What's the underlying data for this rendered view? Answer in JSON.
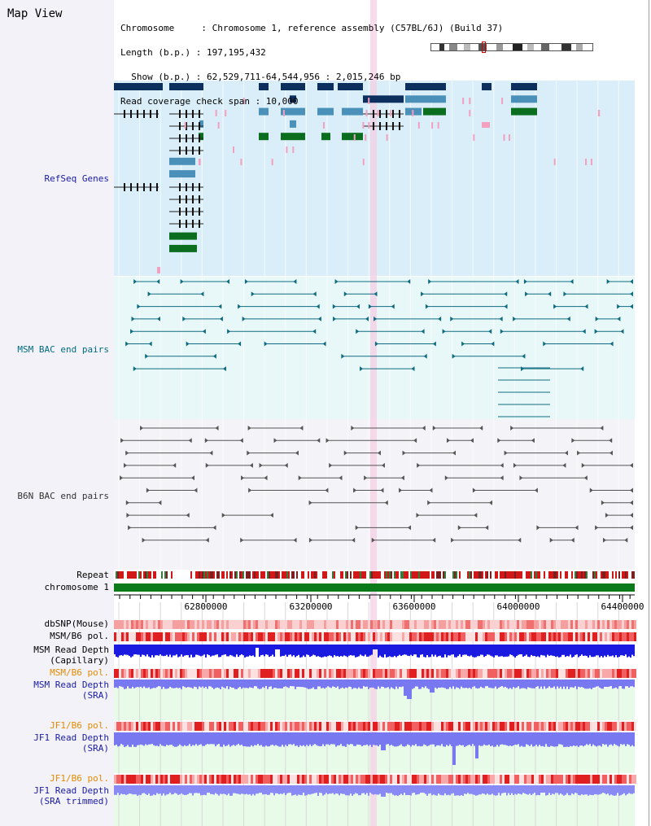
{
  "header": {
    "title": "Map View",
    "info_lines": [
      "Chromosome     : Chromosome 1, reference assembly (C57BL/6J) (Build 37)",
      "Length (b.p.) : 197,195,432",
      "  Show (b.p.) : 62,529,711-64,544,956 : 2,015,246 bp",
      "Read coverage check span : 10,000"
    ]
  },
  "tracks": [
    {
      "label": "RefSeq Genes"
    },
    {
      "label": "MSM BAC end pairs"
    },
    {
      "label": "B6N BAC end pairs"
    },
    {
      "label": "Repeat"
    },
    {
      "label": "chromosome 1"
    },
    {
      "label": "dbSNP(Mouse)"
    },
    {
      "label": "MSM/B6 pol."
    },
    {
      "label": "MSM Read Depth"
    },
    {
      "label": "(Capillary)"
    },
    {
      "label": "MSM/B6 pol."
    },
    {
      "label": "MSM Read Depth"
    },
    {
      "label": "(SRA)"
    },
    {
      "label": "JF1/B6 pol."
    },
    {
      "label": "JF1 Read Depth"
    },
    {
      "label": "(SRA)"
    },
    {
      "label": "JF1/B6 pol."
    },
    {
      "label": "JF1 Read Depth"
    },
    {
      "label": "(SRA trimmed)"
    }
  ],
  "axis": {
    "ticks": [
      "62800000",
      "63200000",
      "63600000",
      "64000000",
      "64400000"
    ]
  },
  "colors": {
    "genes_bg": "#d9eef8",
    "msm_bg": "#e8f8f8",
    "b6n_bg": "#f4f4f8",
    "depth_bg": "#e8fae8",
    "highlight": "#f6cfe6",
    "gene_navy": "#0d2f5e",
    "gene_steel": "#4a90b8",
    "gene_green": "#0a6e1e",
    "msm_feature": "#0e6b80",
    "b6n_feature": "#555555",
    "repeat_red": "#d01818",
    "chrom_green": "#0a7a1a",
    "depth_blue": "#1a1ae0",
    "depth_light": "#7878f0"
  }
}
